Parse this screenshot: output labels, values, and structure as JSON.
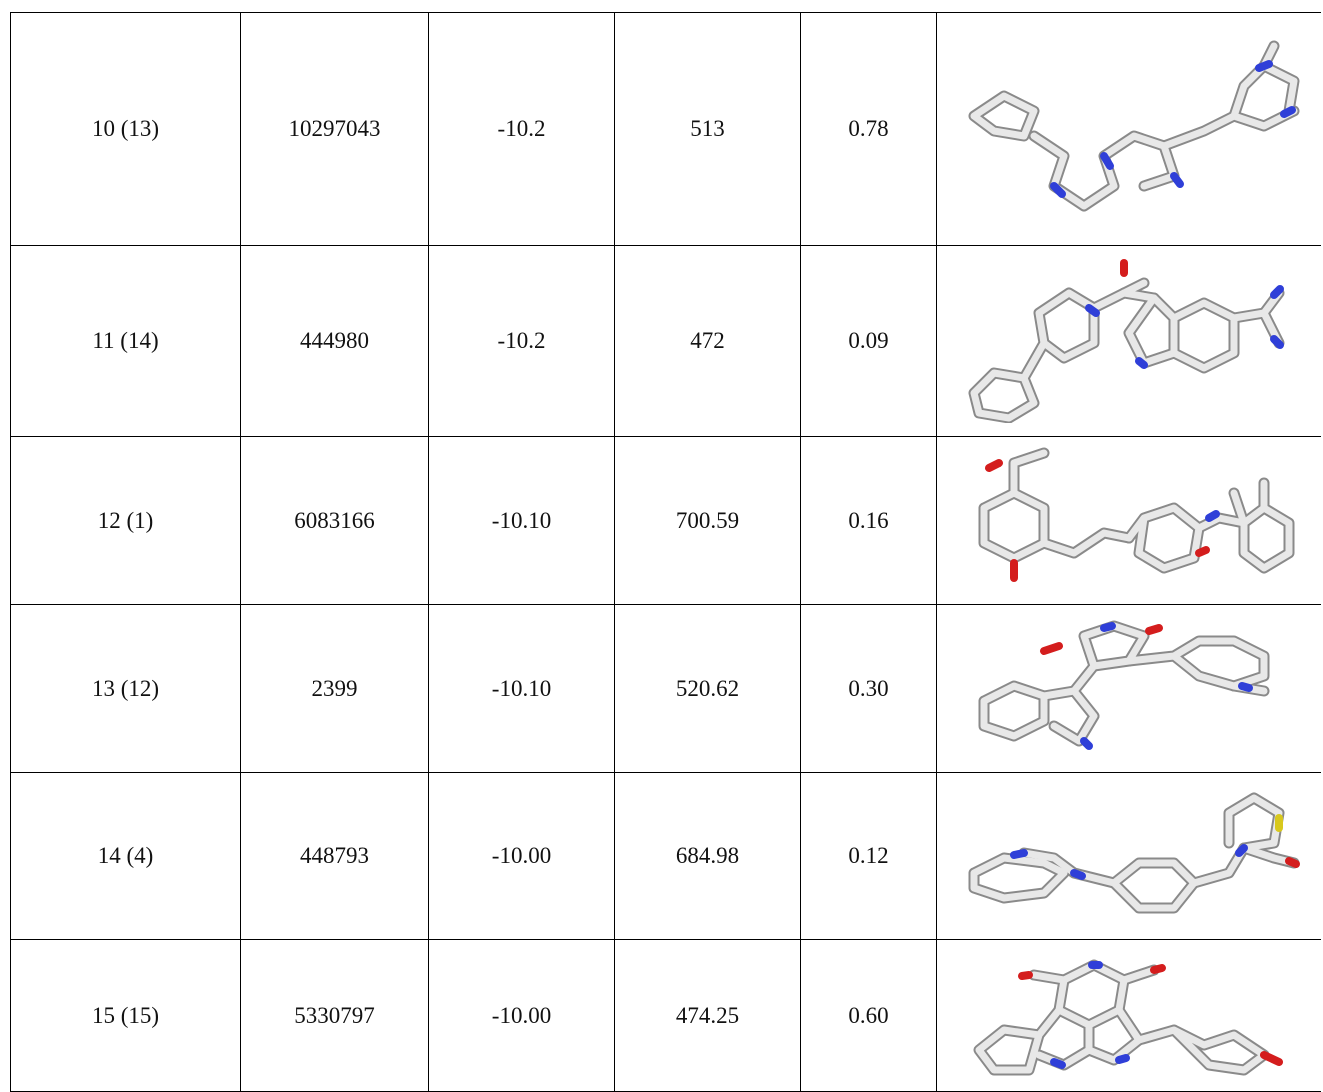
{
  "table": {
    "rows": [
      [
        "10 (13)",
        "10297043",
        "-10.2",
        "513",
        "0.78"
      ],
      [
        "11 (14)",
        "444980",
        "-10.2",
        "472",
        "0.09"
      ],
      [
        "12 (1)",
        "6083166",
        "-10.10",
        "700.59",
        "0.16"
      ],
      [
        "13 (12)",
        "2399",
        "-10.10",
        "520.62",
        "0.30"
      ],
      [
        "14 (4)",
        "448793",
        "-10.00",
        "684.98",
        "0.12"
      ],
      [
        "15 (15)",
        "5330797",
        "-10.00",
        "474.25",
        "0.60"
      ]
    ]
  }
}
